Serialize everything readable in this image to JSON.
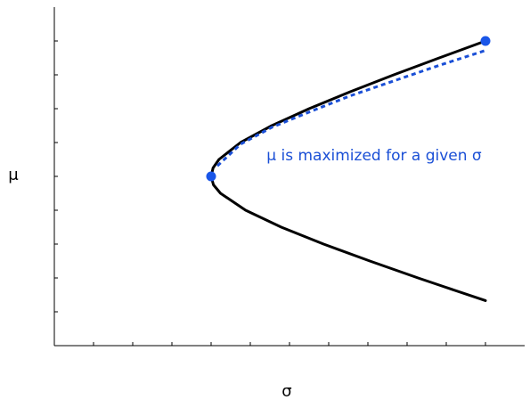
{
  "chart_data": {
    "type": "line",
    "x_label": "σ",
    "y_label": "μ",
    "annotation": "μ is maximized for a given σ",
    "xlim": [
      0,
      12
    ],
    "ylim": [
      0,
      10
    ],
    "xticks": [
      1,
      2,
      3,
      4,
      5,
      6,
      7,
      8,
      9,
      10,
      11
    ],
    "yticks": [
      1,
      2,
      3,
      4,
      5,
      6,
      7,
      8,
      9
    ],
    "series": [
      {
        "style": "solid",
        "color": "#000000",
        "x": [
          11,
          9.82,
          8.66,
          7.55,
          6.5,
          5.55,
          4.75,
          4.2,
          4.05,
          4,
          4.06,
          4.24,
          4.88,
          5.79,
          6.87,
          8.05,
          9.28,
          9.92,
          11
        ],
        "values": [
          9,
          8.5,
          8,
          7.5,
          7,
          6.5,
          6,
          5.5,
          5.25,
          5,
          4.75,
          4.5,
          4,
          3.5,
          3,
          2.5,
          2,
          1.75,
          1.33
        ]
      },
      {
        "style": "dashed",
        "color": "#1a4fd6",
        "x": [
          4.16,
          4.75,
          5.55,
          6.5,
          7.55,
          8.66,
          9.82,
          11
        ],
        "values": [
          5.31,
          5.95,
          6.45,
          6.9,
          7.38,
          7.82,
          8.28,
          8.72
        ]
      },
      {
        "style": "points",
        "color": "#1a56e8",
        "x": [
          4,
          11
        ],
        "values": [
          5,
          9
        ]
      }
    ]
  }
}
